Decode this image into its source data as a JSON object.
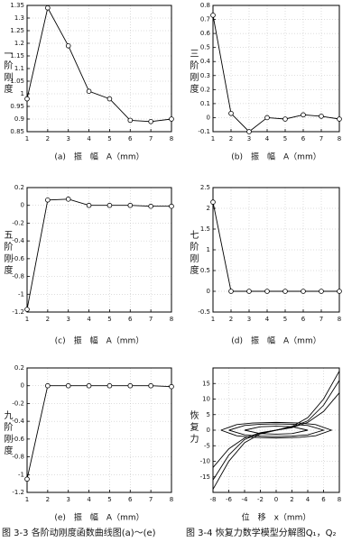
{
  "chart_data": [
    {
      "type": "line",
      "ylabel": "一阶刚度",
      "xlabel": "(a)　振　幅　A（mm）",
      "marker": "circle",
      "color": "#000000",
      "grid": true,
      "x": [
        1,
        2,
        3,
        4,
        5,
        6,
        7,
        8
      ],
      "xlim": [
        1,
        8
      ],
      "xticks": [
        1,
        2,
        3,
        4,
        5,
        6,
        7,
        8
      ],
      "values": [
        0.98,
        1.34,
        1.19,
        1.01,
        0.98,
        0.895,
        0.89,
        0.9
      ],
      "ylim": [
        0.85,
        1.35
      ],
      "yticks": [
        0.85,
        0.9,
        0.95,
        1,
        1.05,
        1.1,
        1.15,
        1.2,
        1.25,
        1.3,
        1.35
      ]
    },
    {
      "type": "line",
      "ylabel": "三阶刚度",
      "xlabel": "(b)　振　幅　A（mm）",
      "marker": "circle",
      "color": "#000000",
      "grid": true,
      "x": [
        1,
        2,
        3,
        4,
        5,
        6,
        7,
        8
      ],
      "xlim": [
        1,
        8
      ],
      "xticks": [
        1,
        2,
        3,
        4,
        5,
        6,
        7,
        8
      ],
      "values": [
        0.73,
        0.03,
        -0.1,
        0.0,
        -0.01,
        0.02,
        0.01,
        -0.01
      ],
      "ylim": [
        -0.1,
        0.8
      ],
      "yticks": [
        -0.1,
        0,
        0.1,
        0.2,
        0.3,
        0.4,
        0.5,
        0.6,
        0.7,
        0.8
      ]
    },
    {
      "type": "line",
      "ylabel": "五阶刚度",
      "xlabel": "(c)　振　幅　A（mm）",
      "marker": "circle",
      "color": "#000000",
      "grid": true,
      "x": [
        1,
        2,
        3,
        4,
        5,
        6,
        7,
        8
      ],
      "xlim": [
        1,
        8
      ],
      "xticks": [
        1,
        2,
        3,
        4,
        5,
        6,
        7,
        8
      ],
      "values": [
        -1.17,
        0.06,
        0.07,
        0.0,
        0.0,
        0.0,
        -0.01,
        -0.01
      ],
      "ylim": [
        -1.2,
        0.2
      ],
      "yticks": [
        -1.2,
        -1,
        -0.8,
        -0.6,
        -0.4,
        -0.2,
        0,
        0.2
      ]
    },
    {
      "type": "line",
      "ylabel": "七阶刚度",
      "xlabel": "(d)　振　幅　A（mm）",
      "marker": "circle",
      "color": "#000000",
      "grid": true,
      "x": [
        1,
        2,
        3,
        4,
        5,
        6,
        7,
        8
      ],
      "xlim": [
        1,
        8
      ],
      "xticks": [
        1,
        2,
        3,
        4,
        5,
        6,
        7,
        8
      ],
      "values": [
        2.15,
        0,
        0,
        0,
        0,
        0,
        0,
        0
      ],
      "ylim": [
        -0.5,
        2.5
      ],
      "yticks": [
        -0.5,
        0,
        0.5,
        1,
        1.5,
        2,
        2.5
      ]
    },
    {
      "type": "line",
      "ylabel": "九阶刚度",
      "xlabel": "(e)　振　幅　A（mm）",
      "marker": "circle",
      "color": "#000000",
      "grid": true,
      "x": [
        1,
        2,
        3,
        4,
        5,
        6,
        7,
        8
      ],
      "xlim": [
        1,
        8
      ],
      "xticks": [
        1,
        2,
        3,
        4,
        5,
        6,
        7,
        8
      ],
      "values": [
        -1.05,
        0,
        0,
        0,
        0,
        0,
        0,
        -0.01
      ],
      "ylim": [
        -1.2,
        0.2
      ],
      "yticks": [
        -1.2,
        -1,
        -0.8,
        -0.6,
        -0.4,
        -0.2,
        0,
        0.2
      ]
    },
    {
      "type": "curves",
      "ylabel": "恢复力",
      "xlabel": "位　移　x（mm）",
      "color": "#000000",
      "grid": true,
      "xlim": [
        -8,
        8
      ],
      "xticks": [
        -8,
        -6,
        -4,
        -2,
        0,
        2,
        4,
        6,
        8
      ],
      "ylim": [
        -20,
        20
      ],
      "yticks": [
        -15,
        -10,
        -5,
        0,
        5,
        10,
        15
      ],
      "series": [
        {
          "x": [
            -8,
            -6,
            -4,
            -2,
            0,
            2,
            4,
            6,
            8
          ],
          "values": [
            -19,
            -10,
            -4,
            -1.2,
            0,
            1.2,
            4,
            10,
            19
          ]
        },
        {
          "x": [
            -8,
            -6,
            -4,
            -2,
            0,
            2,
            4,
            6,
            8
          ],
          "values": [
            -16,
            -8,
            -3,
            -1,
            0,
            1,
            3,
            8,
            16
          ]
        },
        {
          "x": [
            -8,
            -6,
            -4,
            -2,
            0,
            2,
            4,
            6,
            8
          ],
          "values": [
            -12,
            -6,
            -2.5,
            -0.8,
            0,
            0.8,
            2.5,
            6,
            12
          ]
        },
        {
          "x": [
            -7,
            -5,
            -3,
            0,
            3,
            5,
            7,
            5,
            3,
            0,
            -3,
            -5,
            -7
          ],
          "values": [
            0,
            1.8,
            2.3,
            2.5,
            2.3,
            1.8,
            0,
            -1.8,
            -2.3,
            -2.5,
            -2.3,
            -1.8,
            0
          ]
        },
        {
          "x": [
            -6,
            -4,
            -2,
            0,
            2,
            4,
            6,
            4,
            2,
            0,
            -2,
            -4,
            -6
          ],
          "values": [
            0,
            1.5,
            1.9,
            2,
            1.9,
            1.5,
            0,
            -1.5,
            -1.9,
            -2,
            -1.9,
            -1.5,
            0
          ]
        },
        {
          "x": [
            -4,
            -2,
            0,
            2,
            4,
            2,
            0,
            -2,
            -4
          ],
          "values": [
            0,
            1.1,
            1.3,
            1.1,
            0,
            -1.1,
            -1.3,
            -1.1,
            0
          ]
        }
      ]
    }
  ],
  "captions": [
    "图 3-3 各阶动刚度函数曲线图(a)～(e)",
    "图 3-4 恢复力数学模型分解图Q₁，Q₂"
  ]
}
